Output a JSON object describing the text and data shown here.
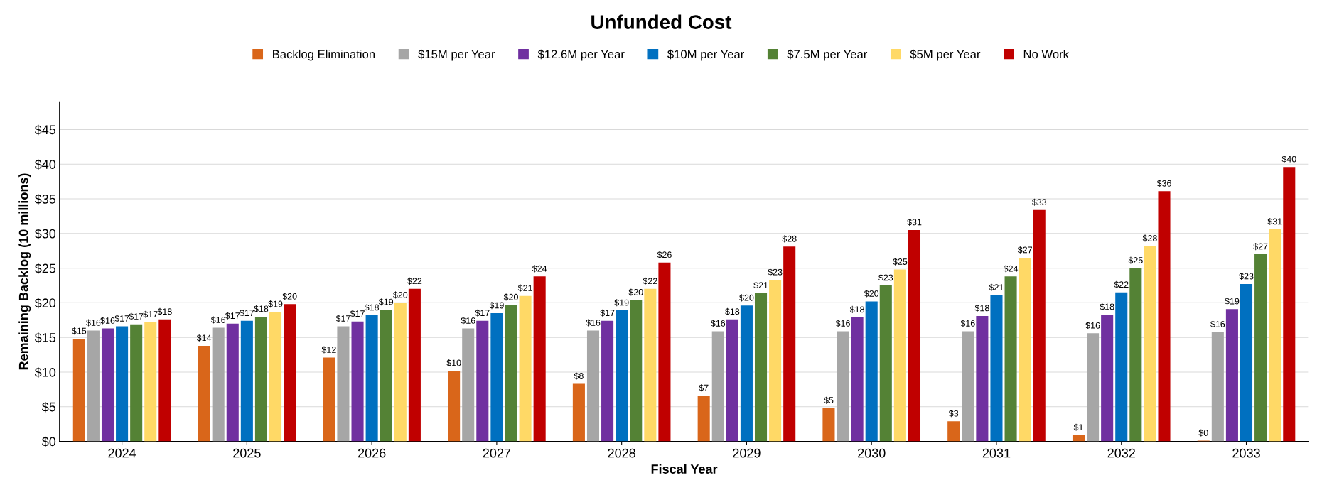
{
  "chart_data": {
    "type": "bar",
    "title": "Unfunded Cost",
    "xlabel": "Fiscal Year",
    "ylabel": "Remaining Backlog (10 millions)",
    "categories": [
      "2024",
      "2025",
      "2026",
      "2027",
      "2028",
      "2029",
      "2030",
      "2031",
      "2032",
      "2033"
    ],
    "series": [
      {
        "name": "Backlog Elimination",
        "color": "#d9661a",
        "values": [
          14.8,
          13.8,
          12.1,
          10.2,
          8.3,
          6.6,
          4.8,
          2.9,
          0.9,
          0.1
        ],
        "value_labels": [
          "$15",
          "$14",
          "$12",
          "$10",
          "$8",
          "$7",
          "$5",
          "$3",
          "$1",
          "$0"
        ]
      },
      {
        "name": "$15M per Year",
        "color": "#a6a6a6",
        "values": [
          16.0,
          16.4,
          16.6,
          16.3,
          16.0,
          15.9,
          15.9,
          15.9,
          15.6,
          15.8
        ],
        "value_labels": [
          "$16",
          "$16",
          "$17",
          "$16",
          "$16",
          "$16",
          "$16",
          "$16",
          "$16",
          "$16"
        ]
      },
      {
        "name": "$12.6M per Year",
        "color": "#7030a0",
        "values": [
          16.3,
          17.0,
          17.3,
          17.4,
          17.4,
          17.6,
          17.9,
          18.1,
          18.3,
          19.1
        ],
        "value_labels": [
          "$16",
          "$17",
          "$17",
          "$17",
          "$17",
          "$18",
          "$18",
          "$18",
          "$18",
          "$19"
        ]
      },
      {
        "name": "$10M per Year",
        "color": "#0070c0",
        "values": [
          16.6,
          17.4,
          18.2,
          18.5,
          18.9,
          19.6,
          20.2,
          21.1,
          21.5,
          22.7
        ],
        "value_labels": [
          "$17",
          "$17",
          "$18",
          "$19",
          "$19",
          "$20",
          "$20",
          "$21",
          "$22",
          "$23"
        ]
      },
      {
        "name": "$7.5M per Year",
        "color": "#548235",
        "values": [
          16.9,
          18.0,
          19.0,
          19.7,
          20.4,
          21.4,
          22.5,
          23.8,
          25.0,
          27.0
        ],
        "value_labels": [
          "$17",
          "$18",
          "$19",
          "$20",
          "$20",
          "$21",
          "$23",
          "$24",
          "$25",
          "$27"
        ]
      },
      {
        "name": "$5M per Year",
        "color": "#ffd966",
        "values": [
          17.2,
          18.7,
          20.0,
          21.0,
          22.0,
          23.3,
          24.8,
          26.5,
          28.2,
          30.6
        ],
        "value_labels": [
          "$17",
          "$19",
          "$20",
          "$21",
          "$22",
          "$23",
          "$25",
          "$27",
          "$28",
          "$31"
        ]
      },
      {
        "name": "No Work",
        "color": "#c00000",
        "values": [
          17.6,
          19.8,
          22.0,
          23.8,
          25.8,
          28.1,
          30.5,
          33.4,
          36.1,
          39.6
        ],
        "value_labels": [
          "$18",
          "$20",
          "$22",
          "$24",
          "$26",
          "$28",
          "$31",
          "$33",
          "$36",
          "$40"
        ]
      }
    ],
    "ylim": [
      0,
      49
    ],
    "yticks": [
      {
        "value": 0,
        "label": "$0"
      },
      {
        "value": 5,
        "label": "$5"
      },
      {
        "value": 10,
        "label": "$10"
      },
      {
        "value": 15,
        "label": "$15"
      },
      {
        "value": 20,
        "label": "$20"
      },
      {
        "value": 25,
        "label": "$25"
      },
      {
        "value": 30,
        "label": "$30"
      },
      {
        "value": 35,
        "label": "$35"
      },
      {
        "value": 40,
        "label": "$40"
      },
      {
        "value": 45,
        "label": "$45"
      }
    ],
    "grid": "y",
    "legend": "top"
  }
}
